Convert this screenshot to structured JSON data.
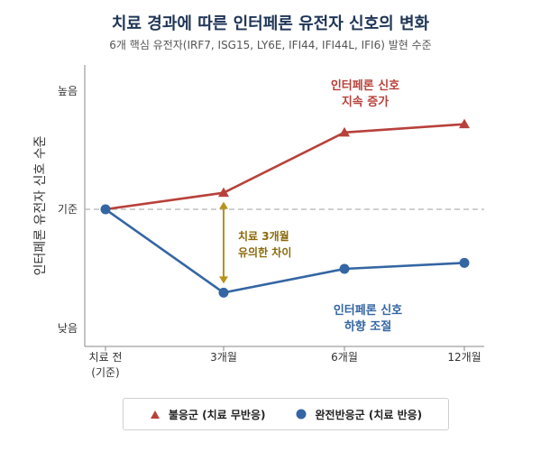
{
  "title": "치료 경과에 따른 인터페론 유전자 신호의 변화",
  "subtitle": "6개 핵심 유전자(IRF7, ISG15, LY6E, IFI44, IFI44L, IFI6) 발현 수준",
  "chart_data": {
    "type": "line",
    "categories": [
      "치료 전\n(기준)",
      "3개월",
      "6개월",
      "12개월"
    ],
    "ylabel": "인터페론 유전자 신호 수준",
    "yticks": [
      {
        "label": "높음",
        "value": 100
      },
      {
        "label": "기준",
        "value": 0
      },
      {
        "label": "낮음",
        "value": -100
      }
    ],
    "ylim": [
      -100,
      100
    ],
    "baseline_label": "기준",
    "grid": false,
    "legend_position": "bottom",
    "series": [
      {
        "name": "불응군 (치료 무반응)",
        "color": "#b8413b",
        "marker": "triangle",
        "values": [
          0,
          14,
          65,
          72
        ]
      },
      {
        "name": "완전반응군 (치료 반응)",
        "color": "#3466a3",
        "marker": "circle",
        "values": [
          0,
          -70,
          -50,
          -45
        ]
      }
    ],
    "annotations": [
      {
        "text": "인터페론 신호\n지속 증가",
        "color": "#b8413b"
      },
      {
        "text": "인터페론 신호\n하향 조절",
        "color": "#3466a3"
      },
      {
        "text": "치료 3개월\n유의한 차이",
        "color": "#8a6a0a"
      }
    ],
    "arrow_color": "#b8921b"
  }
}
